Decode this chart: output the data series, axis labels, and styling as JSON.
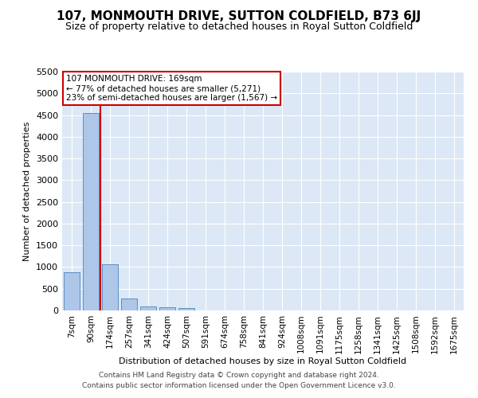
{
  "title": "107, MONMOUTH DRIVE, SUTTON COLDFIELD, B73 6JJ",
  "subtitle": "Size of property relative to detached houses in Royal Sutton Coldfield",
  "xlabel": "Distribution of detached houses by size in Royal Sutton Coldfield",
  "ylabel": "Number of detached properties",
  "footer1": "Contains HM Land Registry data © Crown copyright and database right 2024.",
  "footer2": "Contains public sector information licensed under the Open Government Licence v3.0.",
  "bar_labels": [
    "7sqm",
    "90sqm",
    "174sqm",
    "257sqm",
    "341sqm",
    "424sqm",
    "507sqm",
    "591sqm",
    "674sqm",
    "758sqm",
    "841sqm",
    "924sqm",
    "1008sqm",
    "1091sqm",
    "1175sqm",
    "1258sqm",
    "1341sqm",
    "1425sqm",
    "1508sqm",
    "1592sqm",
    "1675sqm"
  ],
  "bar_values": [
    880,
    4550,
    1060,
    280,
    95,
    80,
    55,
    0,
    0,
    0,
    0,
    0,
    0,
    0,
    0,
    0,
    0,
    0,
    0,
    0,
    0
  ],
  "bar_color": "#aec6e8",
  "bar_edgecolor": "#5a8fc2",
  "vline_pos": 1.5,
  "vline_color": "#cc0000",
  "annotation_title": "107 MONMOUTH DRIVE: 169sqm",
  "annotation_line1": "← 77% of detached houses are smaller (5,271)",
  "annotation_line2": "23% of semi-detached houses are larger (1,567) →",
  "annotation_box_color": "#cc0000",
  "ylim": [
    0,
    5500
  ],
  "yticks": [
    0,
    500,
    1000,
    1500,
    2000,
    2500,
    3000,
    3500,
    4000,
    4500,
    5000,
    5500
  ],
  "bg_color": "#dce8f5",
  "title_fontsize": 11,
  "subtitle_fontsize": 9,
  "footer_fontsize": 6.5
}
